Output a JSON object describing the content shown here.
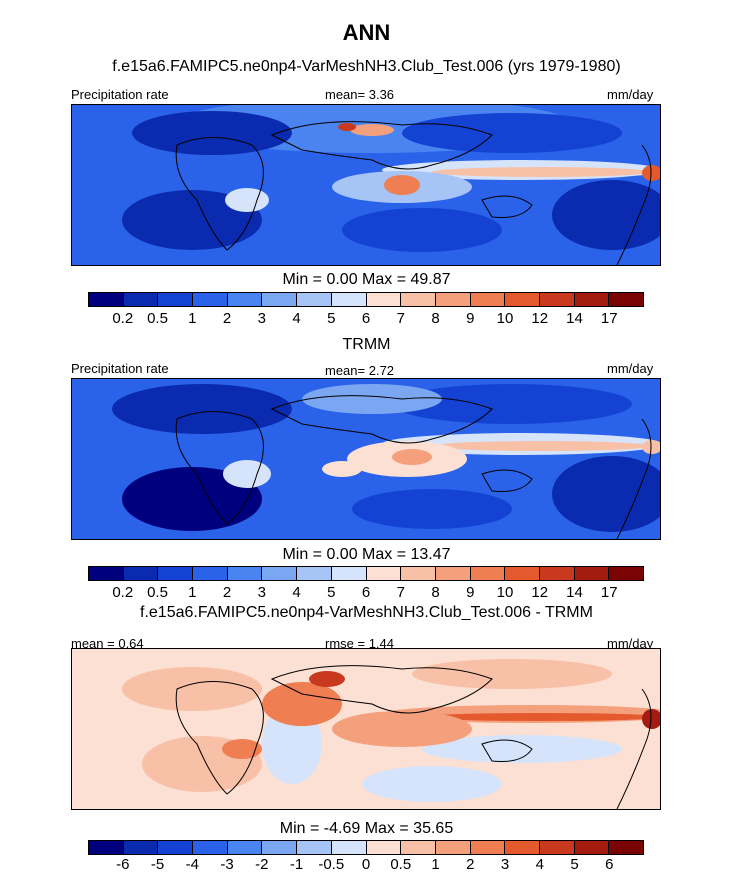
{
  "title": "ANN",
  "panels": [
    {
      "title": "f.e15a6.FAMIPC5.ne0np4-VarMeshNH3.Club_Test.006 (yrs 1979-1980)",
      "left_label": "Precipitation rate",
      "center_label": "mean=   3.36",
      "units": "mm/day",
      "minmax": "Min =   0.00 Max =  49.87",
      "colorbar_labels": [
        "0.2",
        "0.5",
        "1",
        "2",
        "3",
        "4",
        "5",
        "6",
        "7",
        "8",
        "9",
        "10",
        "12",
        "14",
        "17"
      ],
      "colorbar_colors": [
        "#00007f",
        "#0a2bb0",
        "#1443d4",
        "#2a63ea",
        "#4a84f0",
        "#7aa6f2",
        "#a7c4f7",
        "#d6e4fb",
        "#fbe0d3",
        "#f8c0a6",
        "#f4a07d",
        "#ef7e52",
        "#e45a2d",
        "#c8391d",
        "#a41c10",
        "#7a0404"
      ]
    },
    {
      "title": "TRMM",
      "left_label": "Precipitation rate",
      "center_label": "mean=   2.72",
      "units": "mm/day",
      "minmax": "Min =   0.00 Max =  13.47",
      "colorbar_labels": [
        "0.2",
        "0.5",
        "1",
        "2",
        "3",
        "4",
        "5",
        "6",
        "7",
        "8",
        "9",
        "10",
        "12",
        "14",
        "17"
      ],
      "colorbar_colors": [
        "#00007f",
        "#0a2bb0",
        "#1443d4",
        "#2a63ea",
        "#4a84f0",
        "#7aa6f2",
        "#a7c4f7",
        "#d6e4fb",
        "#fbe0d3",
        "#f8c0a6",
        "#f4a07d",
        "#ef7e52",
        "#e45a2d",
        "#c8391d",
        "#a41c10",
        "#7a0404"
      ]
    },
    {
      "title": "f.e15a6.FAMIPC5.ne0np4-VarMeshNH3.Club_Test.006 - TRMM",
      "left_label": "mean =    0.64",
      "center_label": "rmse =    1.44",
      "units": "mm/day",
      "minmax": "Min =  -4.69 Max =  35.65",
      "colorbar_labels": [
        "-6",
        "-5",
        "-4",
        "-3",
        "-2",
        "-1",
        "-0.5",
        "0",
        "0.5",
        "1",
        "2",
        "3",
        "4",
        "5",
        "6"
      ],
      "colorbar_colors": [
        "#00007f",
        "#0a2bb0",
        "#1443d4",
        "#2a63ea",
        "#4a84f0",
        "#7aa6f2",
        "#a7c4f7",
        "#d6e4fb",
        "#fbe0d3",
        "#f8c0a6",
        "#f4a07d",
        "#ef7e52",
        "#e45a2d",
        "#c8391d",
        "#a41c10",
        "#7a0404"
      ]
    }
  ]
}
